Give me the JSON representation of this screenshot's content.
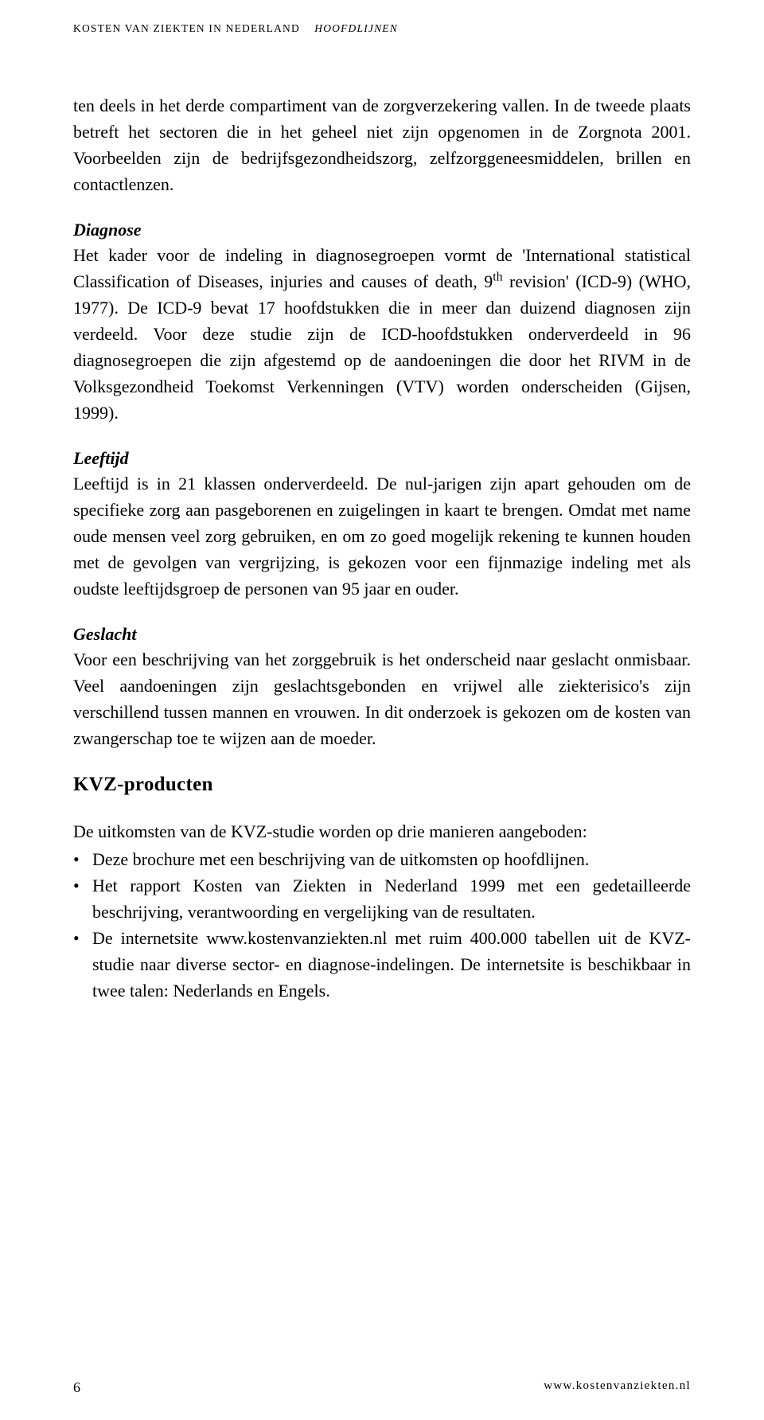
{
  "header": {
    "main": "KOSTEN VAN ZIEKTEN IN NEDERLAND",
    "sub": "HOOFDLIJNEN"
  },
  "paragraphs": {
    "intro": "ten deels in het derde compartiment van de zorgverzekering vallen. In de tweede plaats betreft het sectoren die in het geheel niet zijn opgenomen in de Zorgnota 2001. Voorbeelden zijn de bedrijfsgezondheidszorg, zelfzorggeneesmiddelen, brillen en contactlenzen."
  },
  "sections": {
    "diagnose": {
      "heading": "Diagnose",
      "text_a": "Het kader voor de indeling in diagnosegroepen vormt de 'International statistical Classification of Diseases, injuries and causes of death, 9",
      "sup": "th",
      "text_b": " revision' (ICD-9) (WHO, 1977). De ICD-9 bevat 17 hoofdstukken die in meer dan duizend diagnosen zijn verdeeld. Voor deze studie zijn de ICD-hoofdstukken onderverdeeld in 96 diagnosegroepen die zijn afgestemd op de aandoeningen die door het RIVM in de Volksgezondheid Toekomst Verkenningen (VTV) worden onderscheiden (Gijsen, 1999)."
    },
    "leeftijd": {
      "heading": "Leeftijd",
      "text": "Leeftijd is in 21 klassen onderverdeeld. De nul-jarigen zijn apart gehouden om de specifieke zorg aan pasgeborenen en zuigelingen in kaart te brengen. Omdat met name oude mensen veel zorg gebruiken, en om zo goed mogelijk rekening te kunnen houden met de gevolgen van vergrijzing, is gekozen voor een fijnmazige indeling met als oudste leeftijdsgroep de personen van 95 jaar en ouder."
    },
    "geslacht": {
      "heading": "Geslacht",
      "text": "Voor een beschrijving van het zorggebruik is het onderscheid naar geslacht onmisbaar. Veel aandoeningen zijn geslachtsgebonden en vrijwel alle ziekterisico's zijn verschillend tussen mannen en vrouwen. In dit onderzoek is gekozen om de kosten van zwangerschap toe te wijzen aan de moeder."
    }
  },
  "kvz": {
    "heading": "KVZ-producten",
    "intro": "De uitkomsten van de KVZ-studie worden op drie manieren aangeboden:",
    "items": [
      "Deze brochure met een beschrijving van de uitkomsten op hoofdlijnen.",
      "Het rapport Kosten van Ziekten in Nederland 1999 met een gedetailleerde beschrijving, verantwoording en vergelijking van de resultaten.",
      "De internetsite www.kostenvanziekten.nl met ruim 400.000 tabellen uit de KVZ-studie naar diverse sector- en diagnose-indelingen. De internetsite is beschikbaar in twee talen: Nederlands en Engels."
    ]
  },
  "footer": {
    "page": "6",
    "url": "www.kostenvanziekten.nl"
  }
}
